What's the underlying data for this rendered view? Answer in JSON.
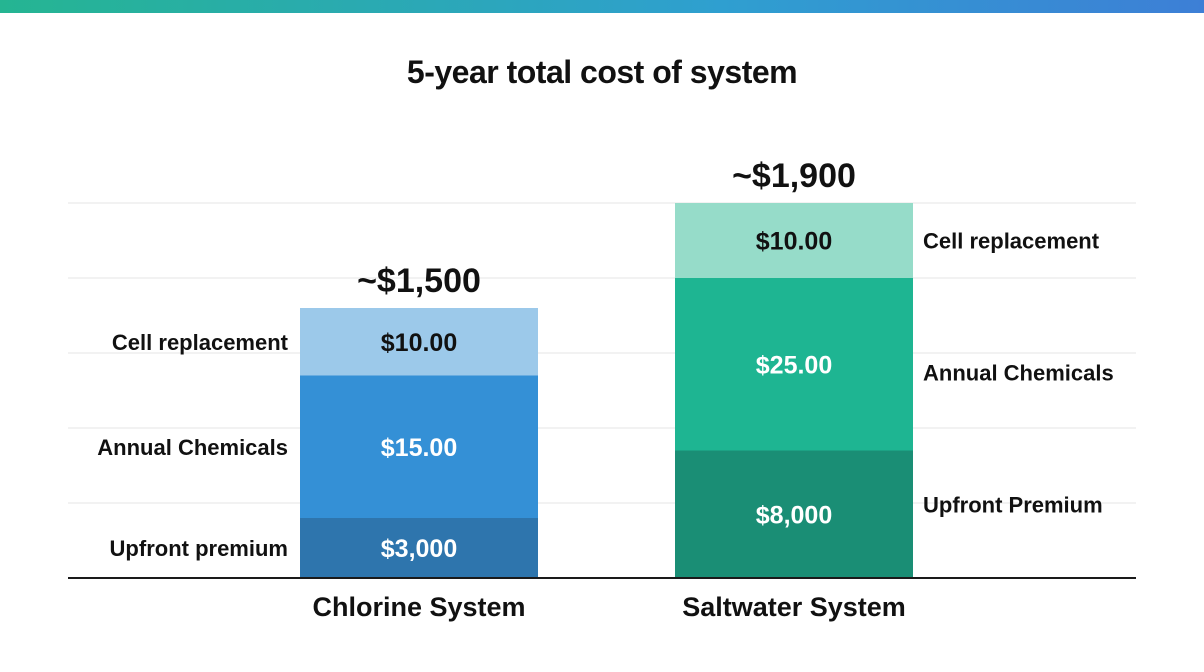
{
  "header": {
    "accent_colors": [
      "#25b592",
      "#3d7fd6"
    ]
  },
  "chart_data": {
    "type": "bar",
    "stacked": true,
    "title": "5-year total cost of system",
    "categories": [
      "Chlorine System",
      "Saltwater System"
    ],
    "totals": [
      "~$1,500",
      "~$1,900"
    ],
    "segments": [
      {
        "category": "Chlorine System",
        "label_side": "left",
        "stack": [
          {
            "label": "Upfront premium",
            "value_label": "$3,000",
            "height": 0.8,
            "color": "#2e75ad",
            "text_color": "#ffffff"
          },
          {
            "label": "Annual Chemicals",
            "value_label": "$15.00",
            "height": 1.9,
            "color": "#3490d6",
            "text_color": "#ffffff"
          },
          {
            "label": "Cell replacement",
            "value_label": "$10.00",
            "height": 0.9,
            "color": "#9cc9ea",
            "text_color": "#111111"
          }
        ]
      },
      {
        "category": "Saltwater System",
        "label_side": "right",
        "stack": [
          {
            "label": "Upfront Premium",
            "value_label": "$8,000",
            "height": 1.7,
            "color": "#1a8e75",
            "text_color": "#ffffff"
          },
          {
            "label": "Annual Chemicals",
            "value_label": "$25.00",
            "height": 2.3,
            "color": "#1eb592",
            "text_color": "#ffffff"
          },
          {
            "label": "Cell replacement",
            "value_label": "$10.00",
            "height": 1.0,
            "color": "#96dcc9",
            "text_color": "#111111"
          }
        ]
      }
    ],
    "ylim": [
      0,
      5
    ],
    "grid": true,
    "axis_color": "#1a1a1a",
    "grid_color": "#e6e6e6"
  }
}
